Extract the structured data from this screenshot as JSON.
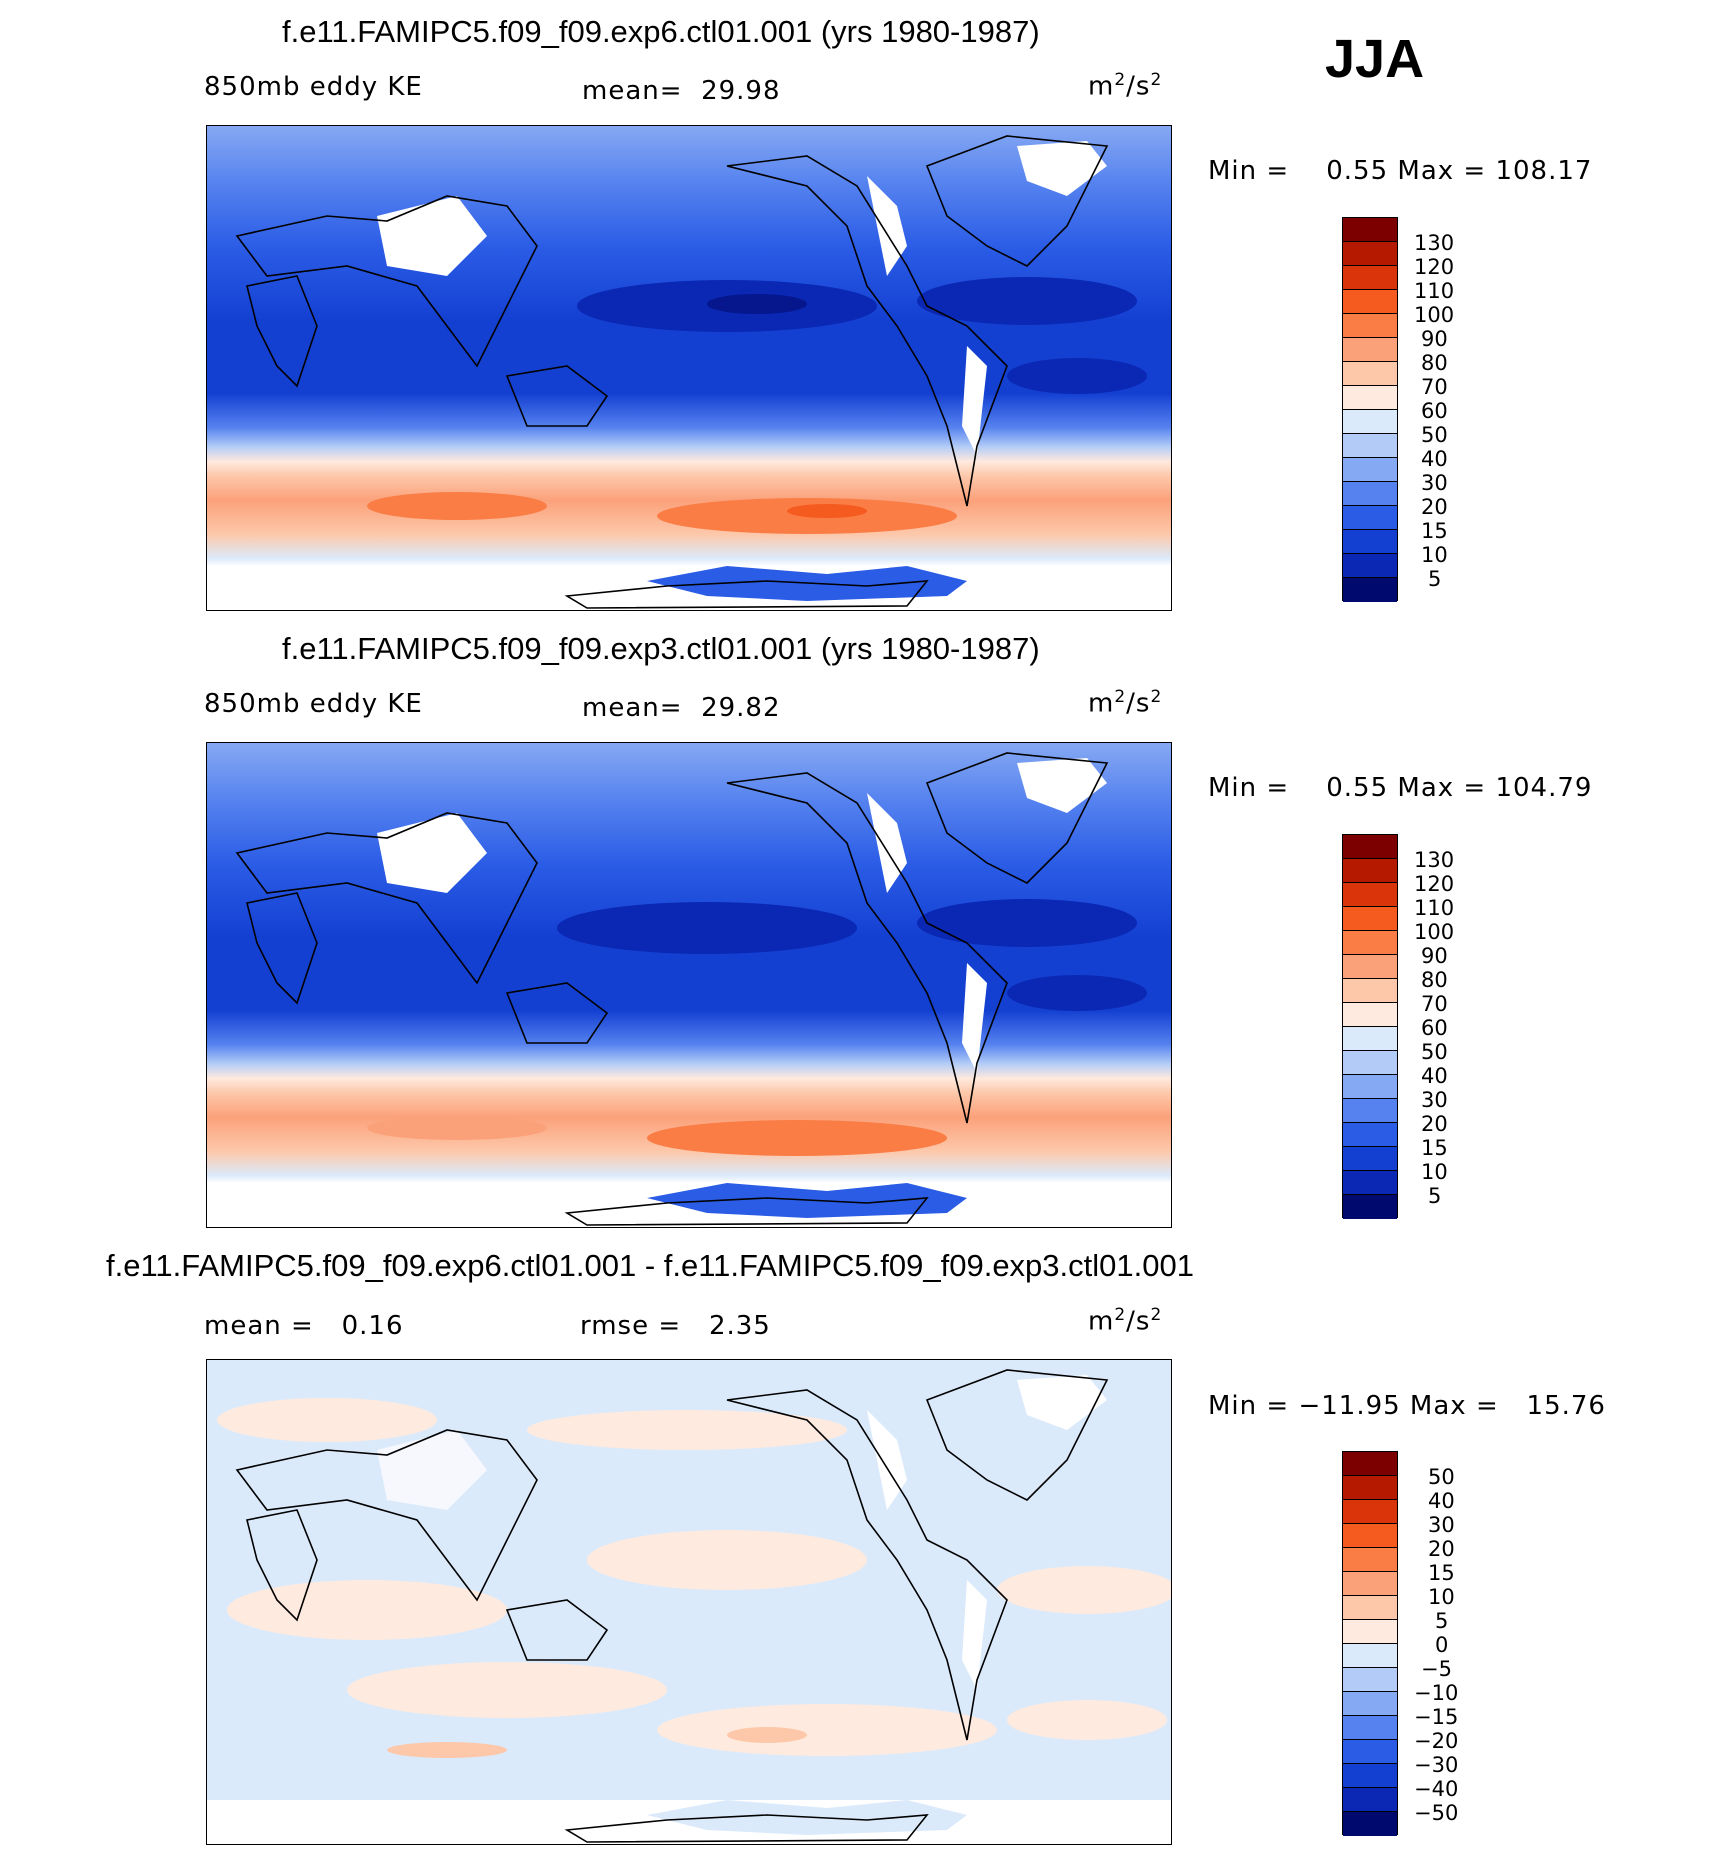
{
  "season": "JJA",
  "units_base": "m",
  "units_exp": "2",
  "units_mid": "/s",
  "panels": [
    {
      "title": "f.e11.FAMIPC5.f09_f09.exp6.ctl01.001 (yrs 1980-1987)",
      "field": "850mb eddy KE",
      "stat1_label": "mean=",
      "stat1_value": "29.98",
      "minmax": "Min =    0.55 Max = 108.17",
      "levels": [
        "130",
        "120",
        "110",
        "100",
        "90",
        "80",
        "70",
        "60",
        "50",
        "40",
        "30",
        "20",
        "15",
        "10",
        "5"
      ]
    },
    {
      "title": "f.e11.FAMIPC5.f09_f09.exp3.ctl01.001 (yrs 1980-1987)",
      "field": "850mb eddy KE",
      "stat1_label": "mean=",
      "stat1_value": "29.82",
      "minmax": "Min =    0.55 Max = 104.79",
      "levels": [
        "130",
        "120",
        "110",
        "100",
        "90",
        "80",
        "70",
        "60",
        "50",
        "40",
        "30",
        "20",
        "15",
        "10",
        "5"
      ]
    },
    {
      "title": "f.e11.FAMIPC5.f09_f09.exp6.ctl01.001 - f.e11.FAMIPC5.f09_f09.exp3.ctl01.001",
      "stat1_label": "mean =",
      "stat1_value": "0.16",
      "stat2_label": "rmse =",
      "stat2_value": "2.35",
      "minmax": "Min = −11.95 Max =   15.76",
      "levels": [
        "50",
        "40",
        "30",
        "20",
        "15",
        "10",
        "5",
        "0",
        "−5",
        "−10",
        "−15",
        "−20",
        "−30",
        "−40",
        "−50"
      ]
    }
  ],
  "colors": {
    "kescale": [
      "#7d0000",
      "#b51a00",
      "#d9340a",
      "#f55a1e",
      "#fa7d45",
      "#fba17a",
      "#fdc8aa",
      "#feeade",
      "#dbeafb",
      "#b3ccf7",
      "#86a9f3",
      "#5582ef",
      "#2b5ce6",
      "#1440d2",
      "#0a28b4",
      "#06168c",
      "#000a6e"
    ],
    "diffscale": [
      "#7d0000",
      "#b51a00",
      "#d9340a",
      "#f55a1e",
      "#fa7d45",
      "#fba17a",
      "#fdc8aa",
      "#feeade",
      "#dbeafb",
      "#b3ccf7",
      "#86a9f3",
      "#5582ef",
      "#2b5ce6",
      "#1440d2",
      "#0a28b4",
      "#000a6e"
    ]
  }
}
